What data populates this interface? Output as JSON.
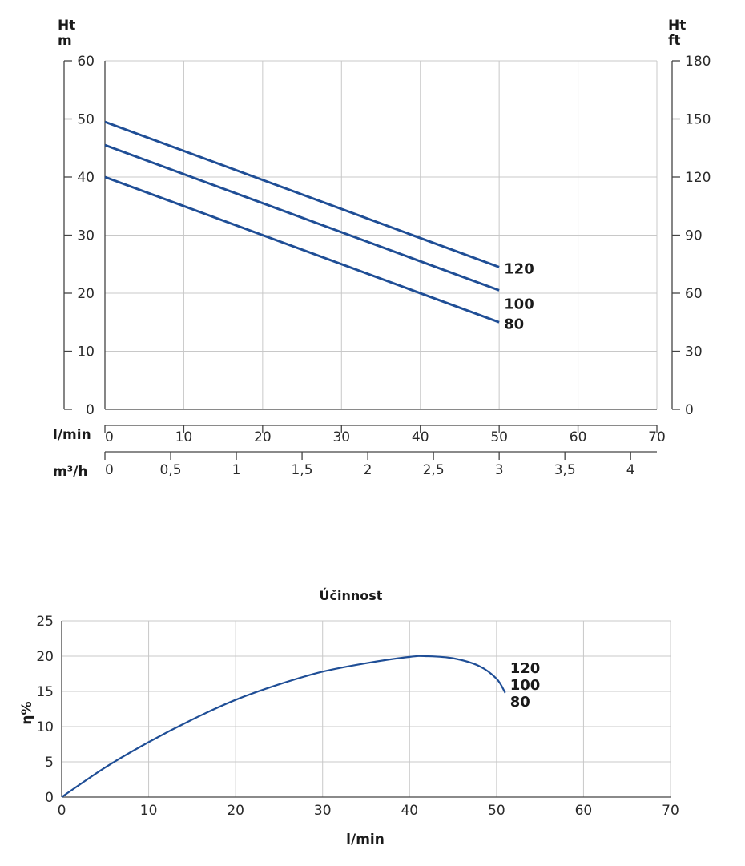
{
  "chart_data": [
    {
      "type": "line",
      "title": "",
      "y_left": {
        "label_line1": "Ht",
        "label_line2": "m",
        "range": [
          0,
          60
        ],
        "ticks": [
          "0",
          "10",
          "20",
          "30",
          "40",
          "50",
          "60"
        ]
      },
      "y_right": {
        "label_line1": "Ht",
        "label_line2": "ft",
        "range": [
          0,
          180
        ],
        "ticks": [
          "0",
          "30",
          "60",
          "90",
          "120",
          "150",
          "180"
        ]
      },
      "x_primary": {
        "label": "l/min",
        "range": [
          0,
          70
        ],
        "ticks": [
          "0",
          "10",
          "20",
          "30",
          "40",
          "50",
          "60",
          "70"
        ]
      },
      "x_secondary": {
        "label": "m³/h",
        "ticks": [
          "0",
          "0,5",
          "1",
          "1,5",
          "2",
          "2,5",
          "3",
          "3,5",
          "4"
        ],
        "values": [
          0,
          0.5,
          1,
          1.5,
          2,
          2.5,
          3,
          3.5,
          4
        ]
      },
      "grid": true,
      "series": [
        {
          "name": "120",
          "x": [
            0,
            50
          ],
          "y": [
            49.5,
            24.5
          ]
        },
        {
          "name": "100",
          "x": [
            0,
            50
          ],
          "y": [
            45.5,
            20.5
          ]
        },
        {
          "name": "80",
          "x": [
            0,
            50
          ],
          "y": [
            40,
            15
          ]
        }
      ],
      "line_color": "#1f4e96"
    },
    {
      "type": "line",
      "title": "Účinnost",
      "ylabel": "η%",
      "xlabel": "l/min",
      "ylim": [
        0,
        25
      ],
      "xlim": [
        0,
        70
      ],
      "y_ticks": [
        "0",
        "5",
        "10",
        "15",
        "20",
        "25"
      ],
      "x_ticks": [
        "0",
        "10",
        "20",
        "30",
        "40",
        "50",
        "60",
        "70"
      ],
      "grid": true,
      "series_labels": [
        "120",
        "100",
        "80"
      ],
      "series": [
        {
          "x": [
            0,
            5,
            10,
            15,
            20,
            25,
            30,
            35,
            40,
            42,
            45,
            48,
            50,
            51
          ],
          "y": [
            0,
            4.2,
            7.8,
            11.0,
            13.8,
            16.0,
            17.8,
            19.0,
            19.9,
            20.0,
            19.7,
            18.6,
            16.8,
            14.8
          ]
        }
      ],
      "line_color": "#1f4e96"
    }
  ]
}
